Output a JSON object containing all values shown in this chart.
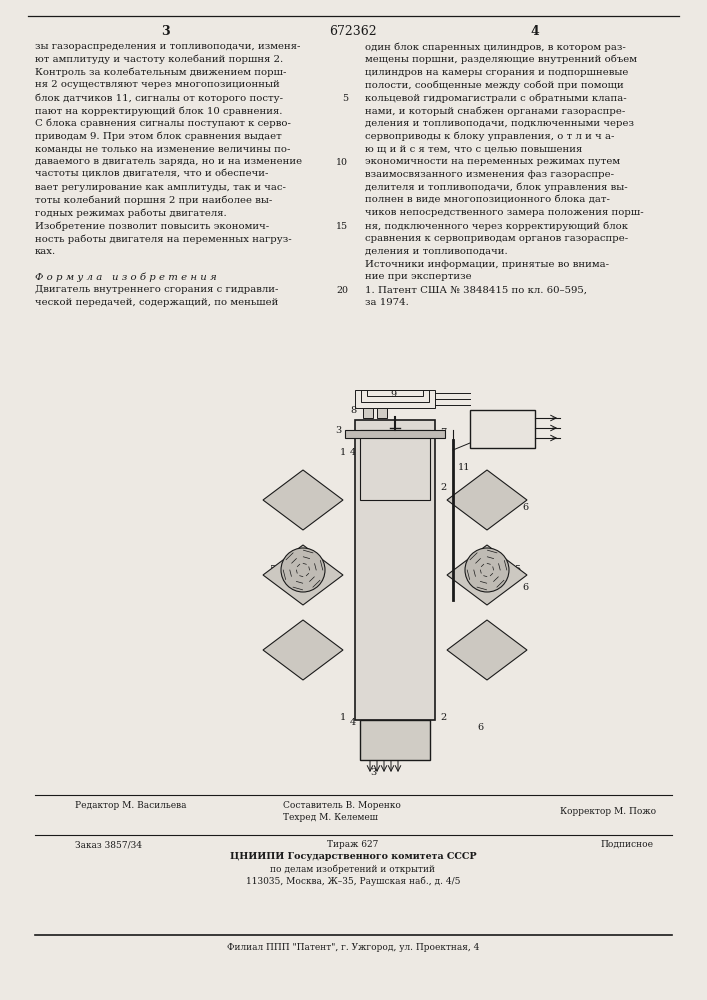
{
  "patent_number": "672362",
  "page_left": "3",
  "page_right": "4",
  "bg_color": "#ede9e3",
  "text_color": "#1a1a1a",
  "col_left_lines": [
    "зы газораспределения и топливоподачи, изменя-",
    "ют амплитуду и частоту колебаний поршня 2.",
    "Контроль за колебательным движением порш-",
    "ня 2 осуществляют через многопозиционный",
    "блок датчиков 11, сигналы от которого посту-",
    "пают на корректирующий блок 10 сравнения.",
    "С блока сравнения сигналы поступают к серво-",
    "приводам 9. При этом блок сравнения выдает",
    "команды не только на изменение величины по-",
    "даваемого в двигатель заряда, но и на изменение",
    "частоты циклов двигателя, что и обеспечи-",
    "вает регулирование как амплитуды, так и час-",
    "тоты колебаний поршня 2 при наиболее вы-",
    "годных режимах работы двигателя.",
    "Изобретение позволит повысить экономич-",
    "ность работы двигателя на переменных нагруз-",
    "ках.",
    "",
    "Ф о р м у л а   и з о б р е т е н и я",
    "Двигатель внутреннего сгорания с гидравли-",
    "ческой передачей, содержащий, по меньшей"
  ],
  "col_right_lines": [
    "один блок спаренных цилиндров, в котором раз-",
    "мещены поршни, разделяющие внутренний объем",
    "цилиндров на камеры сгорания и подпоршневые",
    "полости, сообщенные между собой при помощи",
    "кольцевой гидромагистрали с обратными клапа-",
    "нами, и который снабжен органами газораспре-",
    "деления и топливоподачи, подключенными через",
    "сервоприводы к блоку управления, о т л и ч а-",
    "ю щ и й с я тем, что с целью повышения",
    "экономичности на переменных режимах путем",
    "взаимосвязанного изменения фаз газораспре-",
    "делителя и топливоподачи, блок управления вы-",
    "полнен в виде многопозиционного блока дат-",
    "чиков непосредственного замера положения порш-",
    "ня, подключенного через корректирующий блок",
    "сравнения к сервоприводам органов газораспре-",
    "деления и топливоподачи.",
    "Источники информации, принятые во внима-",
    "ние при экспертизе",
    "1. Патент США № 3848415 по кл. 60–595,",
    "за 1974."
  ],
  "footer_editor": "Редактор М. Васильева",
  "footer_composer": "Составитель В. Моренко",
  "footer_corrector": "Корректор М. Пожо",
  "footer_techred": "Техред М. Келемеш",
  "footer_order": "Заказ 3857/34",
  "footer_tirazh": "Тираж 627",
  "footer_podp": "Подписное",
  "footer_cniip1": "ЦНИИПИ Государственного комитета СССР",
  "footer_cniip2": "по делам изобретений и открытий",
  "footer_address": "113035, Москва, Ж–35, Раушская наб., д. 4/5",
  "footer_filial": "Филиал ППП \"Патент\", г. Ужгород, ул. Проектная, 4",
  "line_numbers_right": [
    "5",
    "10",
    "15",
    "20"
  ]
}
